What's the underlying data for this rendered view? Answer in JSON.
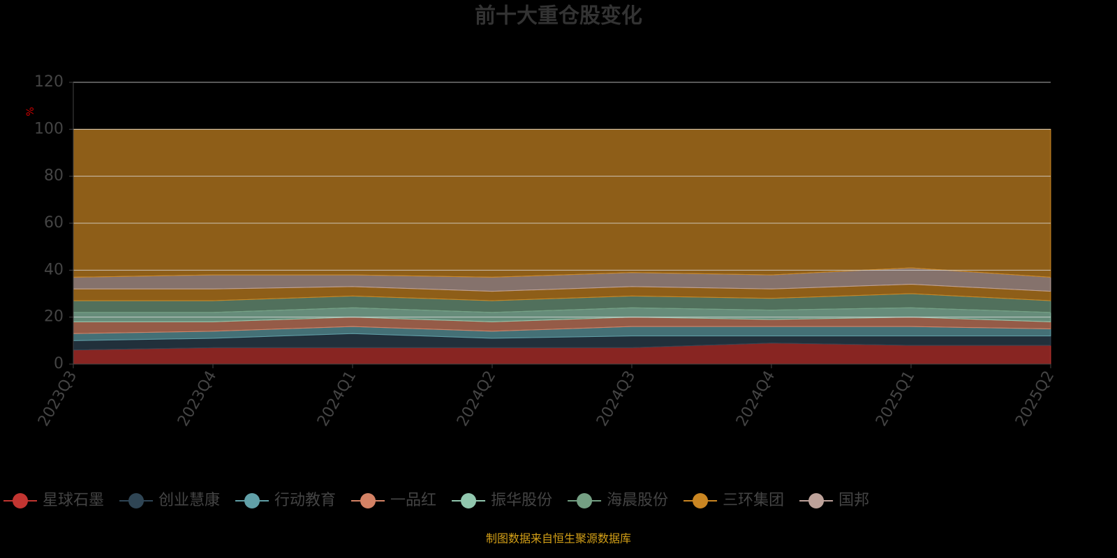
{
  "chart_data": {
    "type": "stacked_area",
    "title": "前十大重仓股变化",
    "y_label": "%",
    "source": "制图数据来自恒生聚源数据库",
    "categories": [
      "2023Q3",
      "2023Q4",
      "2024Q1",
      "2024Q2",
      "2024Q3",
      "2024Q4",
      "2025Q1",
      "2025Q2"
    ],
    "ylim": [
      0,
      120
    ],
    "yticks": [
      0,
      20,
      40,
      60,
      80,
      100,
      120
    ],
    "grid": true,
    "series": [
      {
        "name": "星球石墨",
        "color": "#c23531",
        "values": [
          6,
          7,
          7,
          7,
          7,
          9,
          8,
          8
        ]
      },
      {
        "name": "创业慧康",
        "color": "#2f4554",
        "values": [
          4,
          4,
          6,
          4,
          5,
          3,
          4,
          4
        ]
      },
      {
        "name": "行动教育",
        "color": "#61a0a8",
        "values": [
          3,
          3,
          3,
          3,
          4,
          4,
          4,
          3
        ]
      },
      {
        "name": "一品红",
        "color": "#d48265",
        "values": [
          5,
          4,
          4,
          4,
          4,
          3,
          4,
          3
        ]
      },
      {
        "name": "振华股份",
        "color": "#91c7ae",
        "values": [
          4,
          4,
          4,
          4,
          4,
          4,
          4,
          4
        ]
      },
      {
        "name": "海晨股份",
        "color": "#749f83",
        "values": [
          5,
          5,
          5,
          5,
          5,
          5,
          6,
          5
        ]
      },
      {
        "name": "三环集团",
        "color": "#ca8622",
        "values": [
          5,
          5,
          4,
          4,
          4,
          4,
          4,
          4
        ]
      },
      {
        "name": "国邦",
        "color": "#bda29a",
        "values": [
          5,
          6,
          5,
          6,
          6,
          6,
          7,
          6
        ]
      },
      {
        "color": "#ca8622",
        "values": [
          63,
          62,
          62,
          63,
          61,
          62,
          59,
          63
        ]
      }
    ]
  }
}
